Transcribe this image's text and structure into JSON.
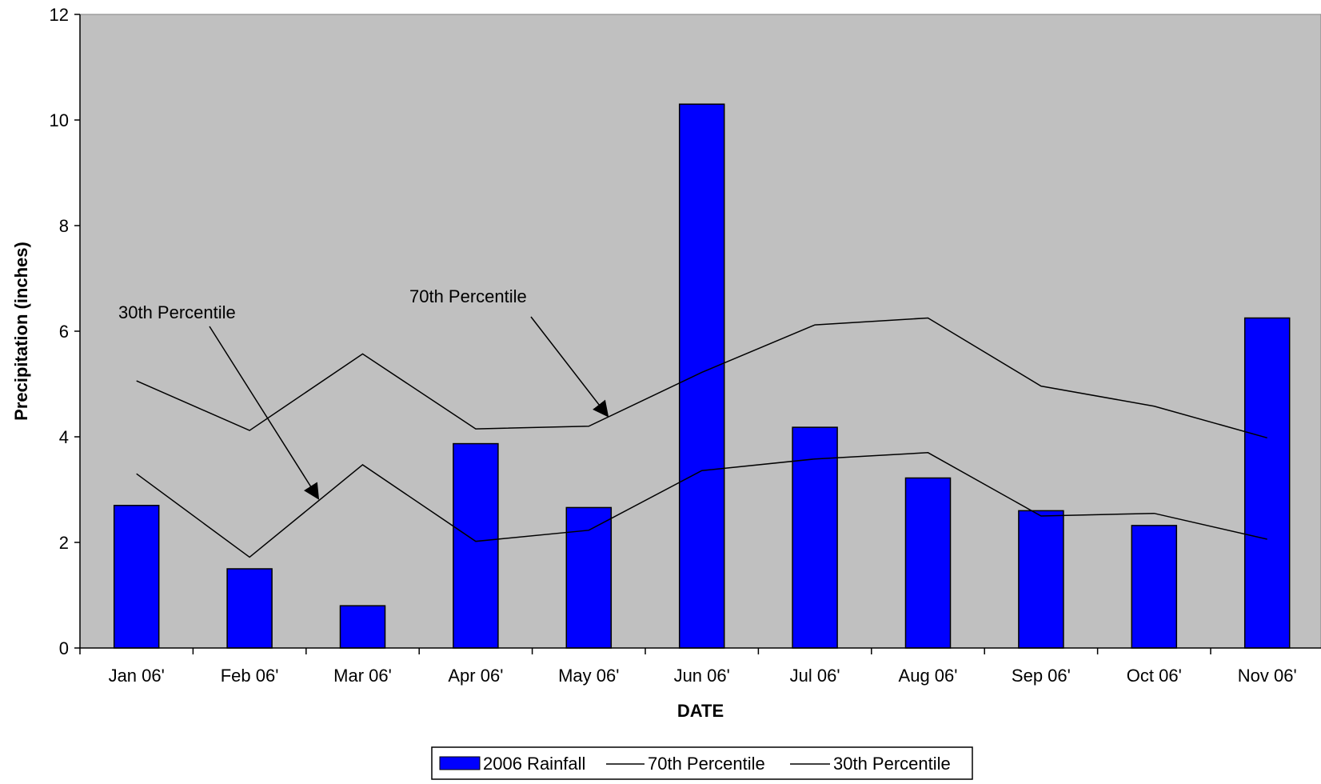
{
  "chart_data": {
    "type": "bar",
    "title": "",
    "xlabel": "DATE",
    "ylabel": "Precipitation (inches)",
    "categories": [
      "Jan 06'",
      "Feb 06'",
      "Mar 06'",
      "Apr 06'",
      "May 06'",
      "Jun 06'",
      "Jul 06'",
      "Aug 06'",
      "Sep 06'",
      "Oct 06'",
      "Nov 06'"
    ],
    "ylim": [
      0,
      12
    ],
    "yticks": [
      "0",
      "2",
      "4",
      "6",
      "8",
      "10",
      "12"
    ],
    "grid": false,
    "legend_position": "bottom",
    "series": [
      {
        "name": "2006 Rainfall",
        "kind": "bar",
        "color": "#0000ff",
        "values": [
          2.7,
          1.5,
          0.8,
          3.87,
          2.66,
          10.3,
          4.18,
          3.22,
          2.6,
          2.32,
          6.25
        ]
      },
      {
        "name": "70th Percentile",
        "kind": "line",
        "color": "#000000",
        "values": [
          5.06,
          4.12,
          5.57,
          4.15,
          4.2,
          5.22,
          6.12,
          6.25,
          4.96,
          4.58,
          3.98
        ]
      },
      {
        "name": "30th Percentile",
        "kind": "line",
        "color": "#000000",
        "values": [
          3.3,
          1.72,
          3.47,
          2.02,
          2.23,
          3.36,
          3.58,
          3.7,
          2.5,
          2.55,
          2.06
        ]
      }
    ],
    "annotations": [
      {
        "text": "30th Percentile",
        "target_series": "30th Percentile"
      },
      {
        "text": "70th Percentile",
        "target_series": "70th Percentile"
      }
    ],
    "colors": {
      "plot_background": "#c0c0c0",
      "bar": "#0000ff"
    }
  }
}
